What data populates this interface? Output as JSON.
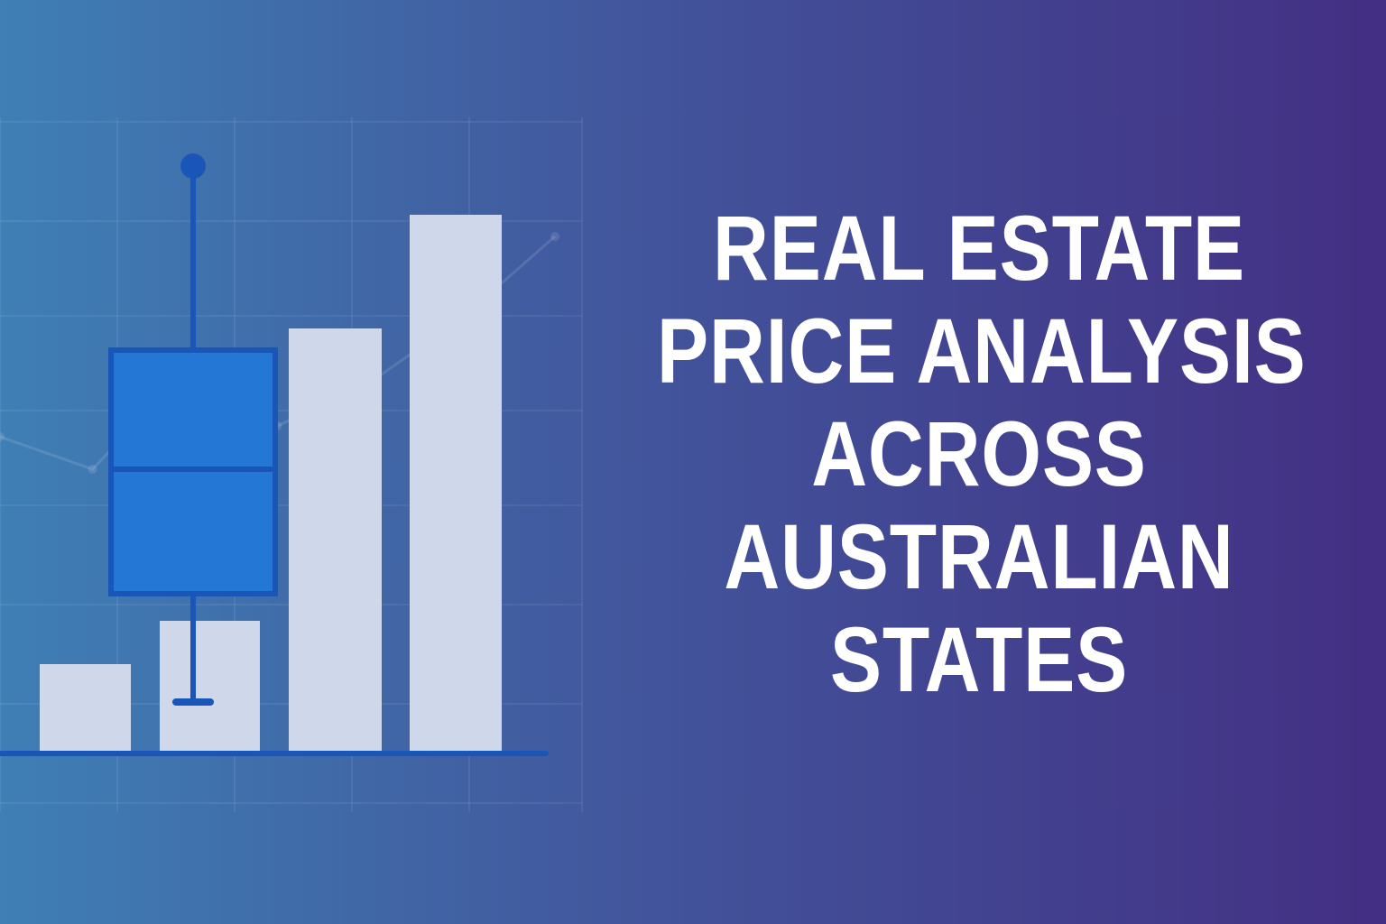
{
  "title_lines": [
    "REAL ESTATE",
    "PRICE ANALYSIS",
    "ACROSS",
    "AUSTRALIAN",
    "STATES"
  ],
  "colors": {
    "gradient_left": "#3f7fb5",
    "gradient_mid": "#42529a",
    "gradient_right": "#432f83",
    "box_fill": "#2577d6",
    "box_stroke": "#1a55b8",
    "whisker": "#1a55b8",
    "bar_fill": "#cfd8ea",
    "baseline": "#1a55b8",
    "grid": "#ffffff",
    "text": "#ffffff"
  },
  "chart_data": {
    "type": "bar",
    "bars": [
      {
        "value": 0.16
      },
      {
        "value": 0.24
      },
      {
        "value": 0.78
      },
      {
        "value": 0.99
      }
    ],
    "box": {
      "whisker_high": 1.08,
      "q3": 0.74,
      "median": 0.52,
      "q1": 0.29,
      "whisker_low": 0.09
    },
    "background_trend": [
      0.58,
      0.52,
      0.7,
      0.6,
      0.68,
      0.8,
      0.95
    ],
    "grid": true,
    "ylim": [
      0,
      1.1
    ]
  }
}
